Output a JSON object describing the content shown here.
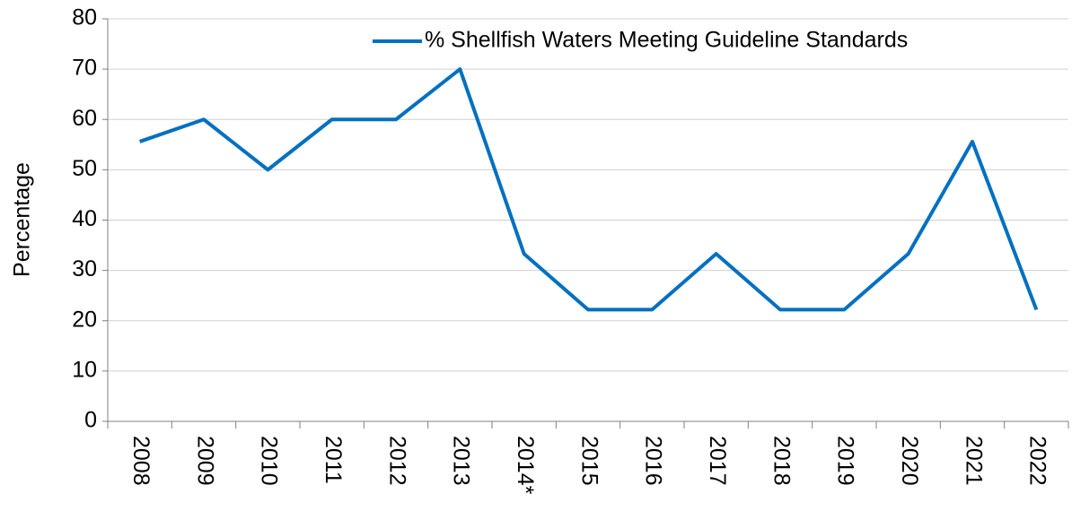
{
  "chart_data": {
    "type": "line",
    "ylabel": "Percentage",
    "categories": [
      "2008",
      "2009",
      "2010",
      "2011",
      "2012",
      "2013",
      "2014*",
      "2015",
      "2016",
      "2017",
      "2018",
      "2019",
      "2020",
      "2021",
      "2022"
    ],
    "series": [
      {
        "name": "% Shellfish Waters Meeting Guideline Standards",
        "color": "#0070c0",
        "values": [
          55.6,
          60,
          50,
          60,
          60,
          70,
          33.3,
          22.2,
          22.2,
          33.3,
          22.2,
          22.2,
          33.3,
          55.6,
          22.2
        ]
      }
    ],
    "ylim": [
      0,
      80
    ],
    "yticks": [
      0,
      10,
      20,
      30,
      40,
      50,
      60,
      70,
      80
    ],
    "grid": true,
    "legend": "upper right"
  }
}
